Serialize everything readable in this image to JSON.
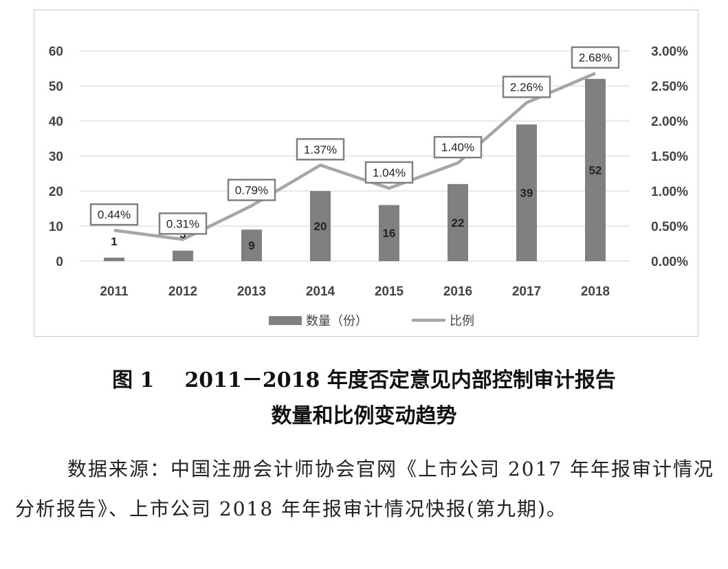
{
  "chart_data": {
    "type": "bar",
    "categories": [
      "2011",
      "2012",
      "2013",
      "2014",
      "2015",
      "2016",
      "2017",
      "2018"
    ],
    "series": [
      {
        "name": "数量（份）",
        "type": "bar",
        "axis": "left",
        "color": "#808080",
        "values": [
          1,
          3,
          9,
          20,
          16,
          22,
          39,
          52
        ]
      },
      {
        "name": "比例",
        "type": "line",
        "axis": "right",
        "color": "#a6a6a6",
        "values": [
          0.44,
          0.31,
          0.79,
          1.37,
          1.04,
          1.4,
          2.26,
          2.68
        ],
        "labels": [
          "0.44%",
          "0.31%",
          "0.79%",
          "1.37%",
          "1.04%",
          "1.40%",
          "2.26%",
          "2.68%"
        ]
      }
    ],
    "bar_labels": [
      "1",
      "3",
      "9",
      "20",
      "16",
      "22",
      "39",
      "52"
    ],
    "left_axis": {
      "ylim": [
        0,
        60
      ],
      "ticks": [
        "0",
        "10",
        "20",
        "30",
        "40",
        "50",
        "60"
      ]
    },
    "right_axis": {
      "ylim": [
        0,
        3.0
      ],
      "ticks": [
        "0.00%",
        "0.50%",
        "1.00%",
        "1.50%",
        "2.00%",
        "2.50%",
        "3.00%"
      ]
    },
    "grid": true,
    "legend": "bottom",
    "legend_items": [
      "数量（份）",
      "比例"
    ]
  },
  "caption": {
    "figure_label": "图 1",
    "line1": "2011－2018 年度否定意见内部控制审计报告",
    "line2": "数量和比例变动趋势"
  },
  "source_note": "数据来源：中国注册会计师协会官网《上市公司 2017 年年报审计情况分析报告》、上市公司 2018 年年报审计情况快报(第九期)。"
}
